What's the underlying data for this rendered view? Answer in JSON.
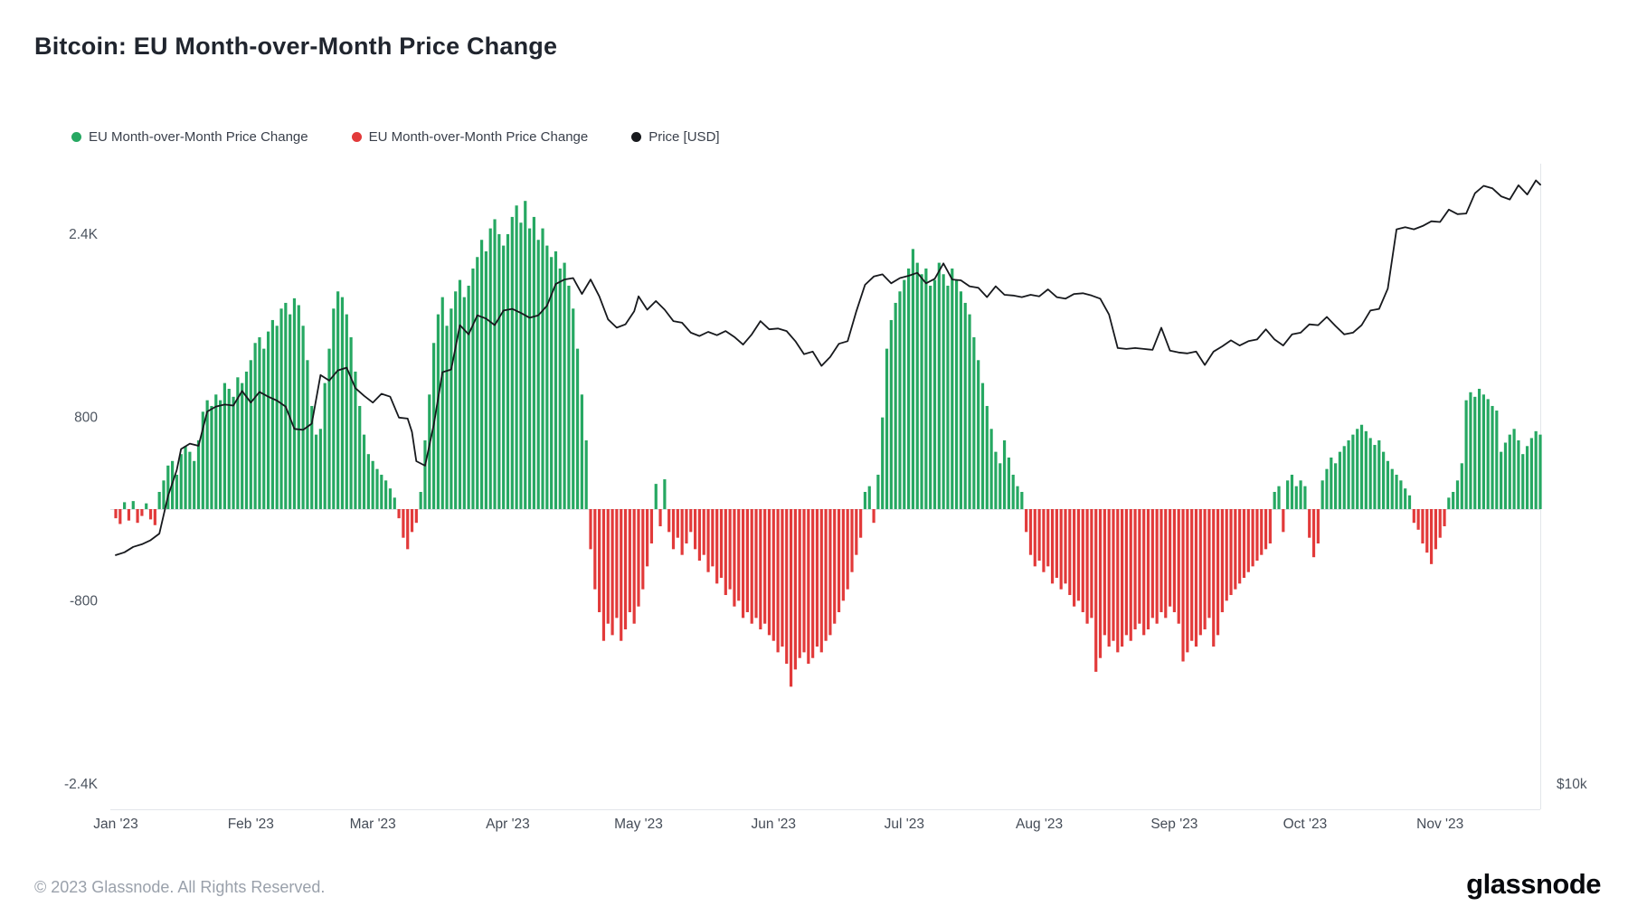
{
  "title": "Bitcoin: EU Month-over-Month Price Change",
  "legend": [
    {
      "label": "EU Month-over-Month Price Change",
      "color": "#26a862"
    },
    {
      "label": "EU Month-over-Month Price Change",
      "color": "#e23a3a"
    },
    {
      "label": "Price [USD]",
      "color": "#17191d"
    }
  ],
  "footer": {
    "copyright": "© 2023 Glassnode. All Rights Reserved.",
    "logo_text": "glassnode"
  },
  "chart_data": {
    "type": "bar",
    "overlay": "line",
    "title": "Bitcoin: EU Month-over-Month Price Change",
    "start_date": "2023-01-01",
    "frequency": "daily",
    "grid": "off",
    "legend_position": "top-left",
    "colors": {
      "positive": "#26a862",
      "negative": "#e23a3a",
      "price": "#17191d"
    },
    "y_axis": {
      "side": "left",
      "ylim": [
        -2600,
        3000
      ],
      "ticks": [
        {
          "label": "2.4K",
          "value": 2400
        },
        {
          "label": "800",
          "value": 800
        },
        {
          "label": "-800",
          "value": -800
        },
        {
          "label": "-2.4K",
          "value": -2400
        }
      ]
    },
    "y2_axis": {
      "side": "right",
      "scale": "log",
      "label": "$10k",
      "label_value": 10000
    },
    "x_axis": {
      "ticks": [
        {
          "label": "Jan '23",
          "day": 0
        },
        {
          "label": "Feb '23",
          "day": 31
        },
        {
          "label": "Mar '23",
          "day": 59
        },
        {
          "label": "Apr '23",
          "day": 90
        },
        {
          "label": "May '23",
          "day": 120
        },
        {
          "label": "Jun '23",
          "day": 151
        },
        {
          "label": "Jul '23",
          "day": 181
        },
        {
          "label": "Aug '23",
          "day": 212
        },
        {
          "label": "Sep '23",
          "day": 243
        },
        {
          "label": "Oct '23",
          "day": 273
        },
        {
          "label": "Nov '23",
          "day": 304
        }
      ]
    },
    "bar_series": {
      "name": "EU Month-over-Month Price Change",
      "values": [
        -80,
        -130,
        60,
        -100,
        70,
        -120,
        -60,
        50,
        -90,
        -140,
        150,
        250,
        380,
        420,
        300,
        480,
        550,
        500,
        420,
        600,
        850,
        950,
        900,
        1000,
        950,
        1100,
        1050,
        980,
        1150,
        1100,
        1200,
        1300,
        1450,
        1500,
        1400,
        1550,
        1650,
        1600,
        1750,
        1800,
        1700,
        1840,
        1780,
        1600,
        1300,
        900,
        650,
        700,
        1100,
        1400,
        1750,
        1900,
        1850,
        1700,
        1500,
        1200,
        900,
        650,
        480,
        420,
        350,
        300,
        250,
        180,
        100,
        -80,
        -250,
        -350,
        -200,
        -120,
        150,
        600,
        1000,
        1450,
        1700,
        1850,
        1600,
        1750,
        1900,
        2000,
        1850,
        1950,
        2100,
        2200,
        2350,
        2250,
        2450,
        2530,
        2400,
        2300,
        2400,
        2550,
        2650,
        2500,
        2690,
        2450,
        2550,
        2350,
        2450,
        2300,
        2200,
        2250,
        2100,
        2150,
        1950,
        1750,
        1400,
        1000,
        600,
        -350,
        -700,
        -900,
        -1150,
        -1000,
        -1100,
        -950,
        -1150,
        -1050,
        -900,
        -1000,
        -850,
        -700,
        -500,
        -300,
        220,
        -150,
        260,
        -200,
        -350,
        -250,
        -400,
        -300,
        -200,
        -350,
        -450,
        -400,
        -550,
        -500,
        -650,
        -600,
        -750,
        -700,
        -850,
        -800,
        -950,
        -900,
        -1000,
        -950,
        -1050,
        -1000,
        -1100,
        -1150,
        -1250,
        -1200,
        -1350,
        -1550,
        -1400,
        -1300,
        -1250,
        -1350,
        -1300,
        -1200,
        -1250,
        -1150,
        -1100,
        -1000,
        -900,
        -800,
        -700,
        -550,
        -400,
        -250,
        150,
        200,
        -120,
        300,
        800,
        1400,
        1650,
        1800,
        1900,
        2000,
        2100,
        2270,
        2150,
        2050,
        2100,
        1950,
        2000,
        2150,
        2050,
        1950,
        2100,
        2000,
        1900,
        1800,
        1700,
        1500,
        1300,
        1100,
        900,
        700,
        500,
        400,
        600,
        450,
        300,
        200,
        150,
        -200,
        -400,
        -500,
        -450,
        -550,
        -500,
        -650,
        -600,
        -700,
        -650,
        -750,
        -850,
        -800,
        -900,
        -1000,
        -950,
        -1420,
        -1300,
        -1100,
        -1200,
        -1150,
        -1250,
        -1200,
        -1100,
        -1150,
        -1050,
        -1000,
        -1100,
        -1050,
        -950,
        -1000,
        -900,
        -950,
        -850,
        -900,
        -1000,
        -1330,
        -1250,
        -1150,
        -1200,
        -1100,
        -1050,
        -950,
        -1200,
        -1100,
        -900,
        -800,
        -750,
        -700,
        -650,
        -600,
        -550,
        -500,
        -450,
        -400,
        -350,
        -300,
        150,
        200,
        -200,
        250,
        300,
        200,
        250,
        200,
        -250,
        -420,
        -300,
        250,
        350,
        450,
        400,
        500,
        550,
        600,
        650,
        700,
        736,
        680,
        620,
        560,
        600,
        500,
        420,
        350,
        300,
        250,
        180,
        120,
        -120,
        -180,
        -300,
        -380,
        -480,
        -350,
        -250,
        -150,
        100,
        150,
        250,
        400,
        950,
        1020,
        980,
        1050,
        1000,
        960,
        900,
        860,
        500,
        580,
        650,
        700,
        600,
        480,
        550,
        620,
        680,
        650
      ]
    },
    "price_series": {
      "name": "Price [USD]",
      "points": [
        [
          0,
          16550
        ],
        [
          2,
          16650
        ],
        [
          4,
          16850
        ],
        [
          6,
          16950
        ],
        [
          8,
          17100
        ],
        [
          10,
          17350
        ],
        [
          12,
          18850
        ],
        [
          14,
          19950
        ],
        [
          15,
          20900
        ],
        [
          17,
          21150
        ],
        [
          19,
          21050
        ],
        [
          21,
          22700
        ],
        [
          23,
          22950
        ],
        [
          25,
          23050
        ],
        [
          27,
          23000
        ],
        [
          29,
          23750
        ],
        [
          31,
          23150
        ],
        [
          33,
          23700
        ],
        [
          35,
          23450
        ],
        [
          37,
          23250
        ],
        [
          39,
          22950
        ],
        [
          41,
          21850
        ],
        [
          43,
          21800
        ],
        [
          45,
          22100
        ],
        [
          47,
          24600
        ],
        [
          49,
          24300
        ],
        [
          51,
          24850
        ],
        [
          53,
          25000
        ],
        [
          55,
          23900
        ],
        [
          57,
          23500
        ],
        [
          59,
          23150
        ],
        [
          61,
          23600
        ],
        [
          63,
          23450
        ],
        [
          65,
          22400
        ],
        [
          67,
          22350
        ],
        [
          68,
          21700
        ],
        [
          69,
          20350
        ],
        [
          71,
          20150
        ],
        [
          73,
          22050
        ],
        [
          75,
          24750
        ],
        [
          77,
          24900
        ],
        [
          79,
          27450
        ],
        [
          81,
          26900
        ],
        [
          83,
          28050
        ],
        [
          85,
          27850
        ],
        [
          87,
          27450
        ],
        [
          89,
          28350
        ],
        [
          91,
          28450
        ],
        [
          93,
          28200
        ],
        [
          95,
          27900
        ],
        [
          97,
          28050
        ],
        [
          99,
          28650
        ],
        [
          101,
          30050
        ],
        [
          103,
          30350
        ],
        [
          105,
          30450
        ],
        [
          107,
          29400
        ],
        [
          109,
          30350
        ],
        [
          111,
          29250
        ],
        [
          113,
          27800
        ],
        [
          115,
          27300
        ],
        [
          117,
          27500
        ],
        [
          119,
          28300
        ],
        [
          120,
          29250
        ],
        [
          122,
          28400
        ],
        [
          124,
          28950
        ],
        [
          126,
          28400
        ],
        [
          128,
          27700
        ],
        [
          130,
          27600
        ],
        [
          132,
          27000
        ],
        [
          134,
          26800
        ],
        [
          136,
          27050
        ],
        [
          138,
          26850
        ],
        [
          140,
          27100
        ],
        [
          142,
          26750
        ],
        [
          144,
          26300
        ],
        [
          146,
          26900
        ],
        [
          148,
          27700
        ],
        [
          150,
          27200
        ],
        [
          152,
          27250
        ],
        [
          154,
          27100
        ],
        [
          156,
          26500
        ],
        [
          158,
          25750
        ],
        [
          160,
          25900
        ],
        [
          162,
          25100
        ],
        [
          164,
          25600
        ],
        [
          166,
          26350
        ],
        [
          168,
          26500
        ],
        [
          170,
          28300
        ],
        [
          172,
          30000
        ],
        [
          174,
          30550
        ],
        [
          176,
          30700
        ],
        [
          178,
          30100
        ],
        [
          180,
          30450
        ],
        [
          182,
          30600
        ],
        [
          184,
          30800
        ],
        [
          186,
          30100
        ],
        [
          188,
          30400
        ],
        [
          190,
          31450
        ],
        [
          192,
          30350
        ],
        [
          194,
          30300
        ],
        [
          196,
          29900
        ],
        [
          198,
          29800
        ],
        [
          200,
          29200
        ],
        [
          202,
          29900
        ],
        [
          204,
          29350
        ],
        [
          206,
          29300
        ],
        [
          208,
          29200
        ],
        [
          210,
          29350
        ],
        [
          212,
          29250
        ],
        [
          214,
          29700
        ],
        [
          216,
          29200
        ],
        [
          218,
          29100
        ],
        [
          220,
          29400
        ],
        [
          222,
          29450
        ],
        [
          224,
          29300
        ],
        [
          226,
          29100
        ],
        [
          228,
          28100
        ],
        [
          230,
          26100
        ],
        [
          232,
          26050
        ],
        [
          234,
          26100
        ],
        [
          236,
          26050
        ],
        [
          238,
          26000
        ],
        [
          240,
          27300
        ],
        [
          242,
          25950
        ],
        [
          244,
          25850
        ],
        [
          246,
          25800
        ],
        [
          248,
          25900
        ],
        [
          250,
          25150
        ],
        [
          252,
          25900
        ],
        [
          254,
          26200
        ],
        [
          256,
          26550
        ],
        [
          258,
          26250
        ],
        [
          260,
          26500
        ],
        [
          262,
          26600
        ],
        [
          264,
          27200
        ],
        [
          266,
          26600
        ],
        [
          268,
          26250
        ],
        [
          270,
          26900
        ],
        [
          272,
          27000
        ],
        [
          274,
          27500
        ],
        [
          276,
          27450
        ],
        [
          278,
          27950
        ],
        [
          280,
          27400
        ],
        [
          282,
          26900
        ],
        [
          284,
          27000
        ],
        [
          286,
          27450
        ],
        [
          288,
          28350
        ],
        [
          290,
          28450
        ],
        [
          292,
          29750
        ],
        [
          294,
          33900
        ],
        [
          296,
          34050
        ],
        [
          298,
          33900
        ],
        [
          300,
          34150
        ],
        [
          302,
          34500
        ],
        [
          304,
          34450
        ],
        [
          306,
          35400
        ],
        [
          308,
          35050
        ],
        [
          310,
          35100
        ],
        [
          312,
          36700
        ],
        [
          314,
          37300
        ],
        [
          316,
          37100
        ],
        [
          318,
          36450
        ],
        [
          320,
          36200
        ],
        [
          322,
          37350
        ],
        [
          324,
          36600
        ],
        [
          326,
          37750
        ],
        [
          327,
          37400
        ]
      ]
    }
  }
}
